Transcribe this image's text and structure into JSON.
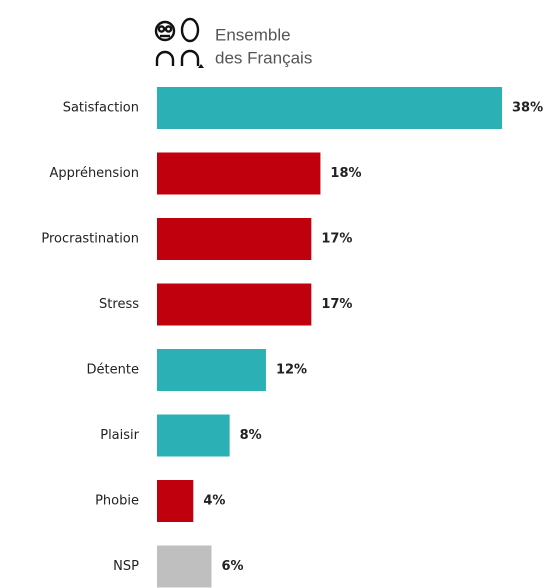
{
  "chart_data": {
    "type": "bar",
    "orientation": "horizontal",
    "title_lines": [
      "Ensemble",
      "des Français"
    ],
    "categories": [
      "Satisfaction",
      "Appréhension",
      "Procrastination",
      "Stress",
      "Détente",
      "Plaisir",
      "Phobie",
      "NSP"
    ],
    "values": [
      38,
      18,
      17,
      17,
      12,
      8,
      4,
      6
    ],
    "value_labels": [
      "38%",
      "18%",
      "17%",
      "17%",
      "12%",
      "8%",
      "4%",
      "6%"
    ],
    "colors": [
      "#2bb0b5",
      "#c0000c",
      "#c0000c",
      "#c0000c",
      "#2bb0b5",
      "#2bb0b5",
      "#c0000c",
      "#bfbfbf"
    ]
  }
}
